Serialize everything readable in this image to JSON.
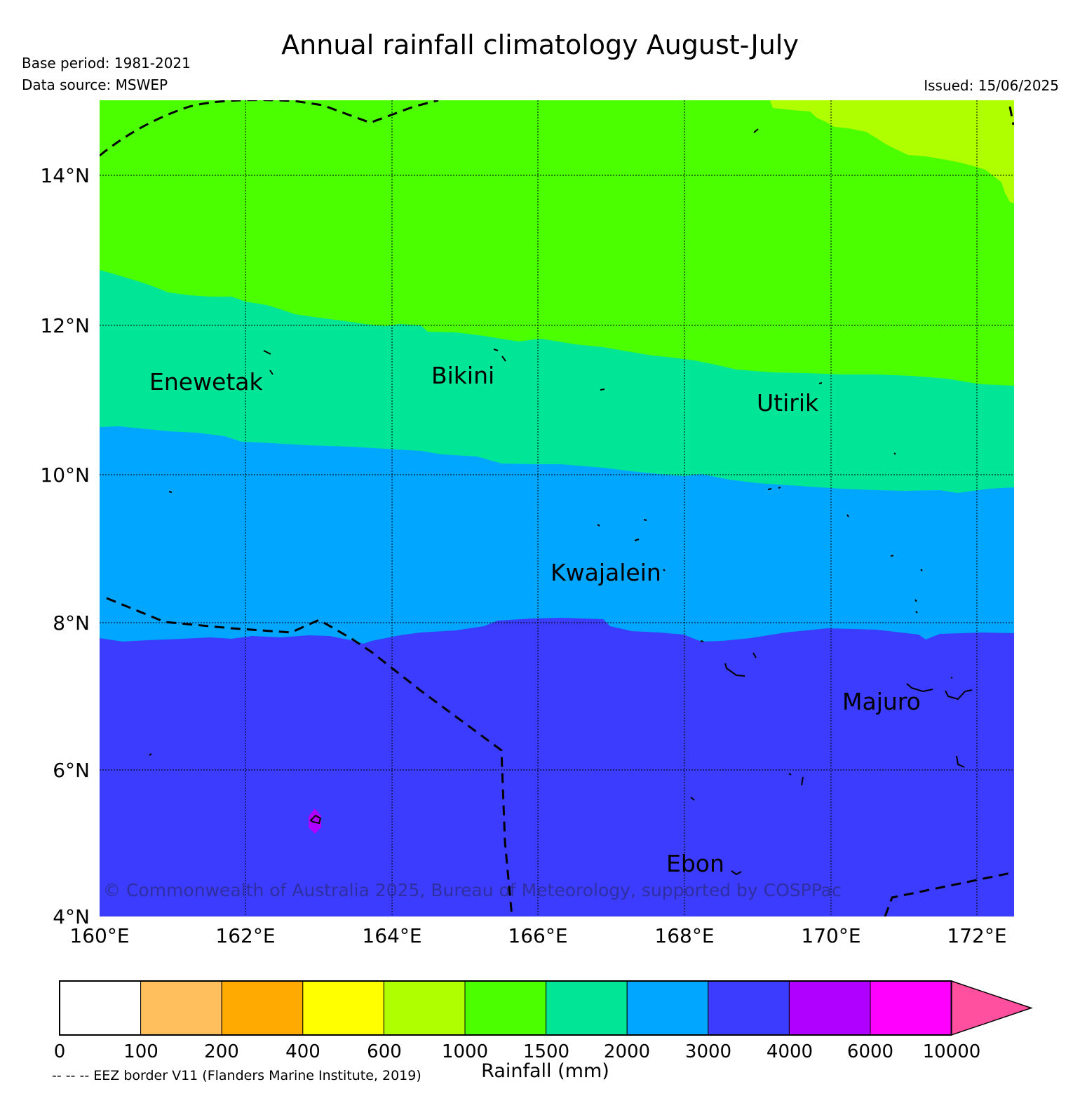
{
  "header": {
    "title": "Annual rainfall climatology August-July",
    "base_period": "Base period: 1981-2021",
    "data_source": "Data source: MSWEP",
    "issued": "Issued: 15/06/2025"
  },
  "map": {
    "lon_range": [
      160,
      172.5
    ],
    "lat_range": [
      4,
      15
    ],
    "x_ticks": [
      "160°E",
      "162°E",
      "164°E",
      "166°E",
      "168°E",
      "170°E",
      "172°E"
    ],
    "y_ticks": [
      "4°N",
      "6°N",
      "8°N",
      "10°N",
      "12°N",
      "14°N"
    ],
    "places": [
      {
        "name": "Enewetak"
      },
      {
        "name": "Bikini"
      },
      {
        "name": "Utirik"
      },
      {
        "name": "Kwajalein"
      },
      {
        "name": "Majuro"
      },
      {
        "name": "Ebon"
      }
    ],
    "copyright": "© Commonwealth of Australia 2025, Bureau of Meteorology, supported by COSPPac",
    "zone_colors": {
      "600-1000": "#b0ff00",
      "1000-1500": "#4cff00",
      "1500-2000": "#00e696",
      "2000-3000": "#00a6ff",
      "3000-4000": "#3c3cff",
      "4000-6000": "#b000ff"
    }
  },
  "colorbar": {
    "label": "Rainfall (mm)",
    "ticks": [
      "0",
      "100",
      "200",
      "400",
      "600",
      "1000",
      "1500",
      "2000",
      "3000",
      "4000",
      "6000",
      "10000"
    ],
    "colors": [
      "#ffffff",
      "#ffbf5c",
      "#ffaa00",
      "#ffff00",
      "#b0ff00",
      "#4cff00",
      "#00e696",
      "#00a6ff",
      "#3c3cff",
      "#b000ff",
      "#ff00ff"
    ],
    "extend_color": "#ff4f9f"
  },
  "footer": {
    "eez_note": "-- -- -- EEZ border V11 (Flanders Marine Institute, 2019)"
  }
}
